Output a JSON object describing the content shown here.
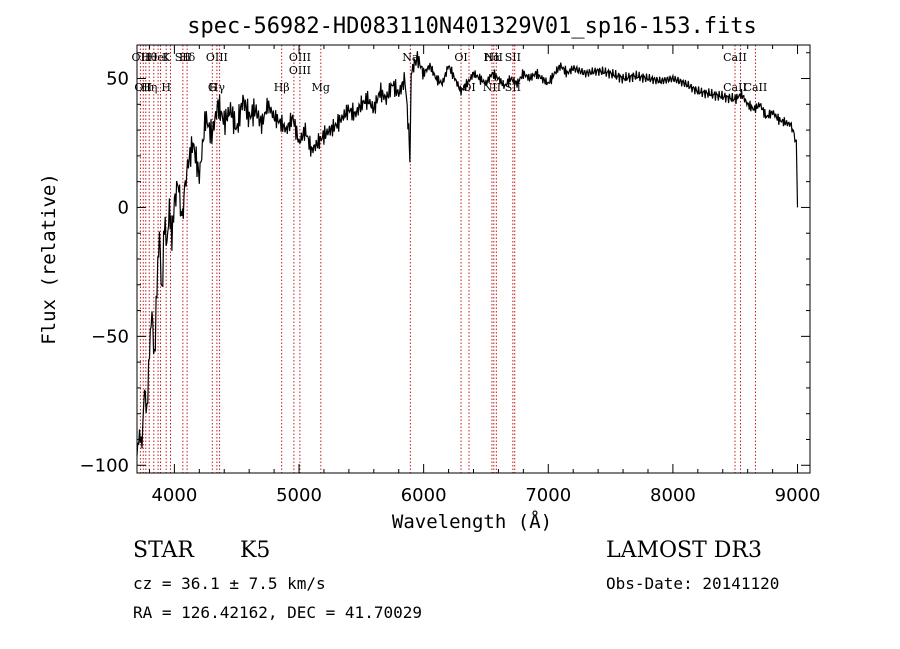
{
  "chart_data": {
    "type": "line",
    "title": "spec-56982-HD083110N401329V01_sp16-153.fits",
    "xlabel": "Wavelength (Å)",
    "ylabel": "Flux (relative)",
    "xlim": [
      3700,
      9100
    ],
    "ylim": [
      -103,
      63
    ],
    "xticks": [
      4000,
      5000,
      6000,
      7000,
      8000,
      9000
    ],
    "yticks": [
      -100,
      -50,
      0,
      50
    ],
    "grid": false,
    "series": [
      {
        "name": "flux",
        "x": [
          3700,
          3720,
          3740,
          3760,
          3780,
          3800,
          3820,
          3840,
          3860,
          3880,
          3900,
          3920,
          3940,
          3960,
          3980,
          4000,
          4030,
          4060,
          4100,
          4150,
          4200,
          4250,
          4300,
          4350,
          4400,
          4450,
          4500,
          4550,
          4600,
          4650,
          4700,
          4750,
          4800,
          4850,
          4900,
          4950,
          5000,
          5050,
          5100,
          5150,
          5200,
          5250,
          5300,
          5350,
          5400,
          5450,
          5500,
          5550,
          5600,
          5650,
          5700,
          5750,
          5800,
          5850,
          5880,
          5890,
          5900,
          5920,
          5950,
          6000,
          6050,
          6100,
          6150,
          6200,
          6250,
          6300,
          6350,
          6400,
          6450,
          6500,
          6550,
          6600,
          6650,
          6700,
          6750,
          6800,
          6850,
          6900,
          6950,
          7000,
          7050,
          7100,
          7150,
          7200,
          7300,
          7400,
          7500,
          7600,
          7700,
          7800,
          7900,
          8000,
          8100,
          8200,
          8300,
          8400,
          8500,
          8550,
          8600,
          8650,
          8700,
          8750,
          8800,
          8850,
          8900,
          8950,
          8990,
          9000
        ],
        "values": [
          -95,
          -88,
          -92,
          -70,
          -80,
          -55,
          -40,
          -60,
          -30,
          -10,
          -35,
          -5,
          -15,
          0,
          -12,
          2,
          10,
          -5,
          15,
          25,
          12,
          35,
          28,
          40,
          33,
          38,
          30,
          42,
          35,
          38,
          32,
          40,
          35,
          33,
          30,
          35,
          25,
          30,
          22,
          25,
          28,
          30,
          32,
          35,
          38,
          36,
          40,
          42,
          38,
          45,
          42,
          48,
          44,
          50,
          30,
          15,
          52,
          55,
          58,
          52,
          55,
          50,
          48,
          55,
          50,
          45,
          48,
          52,
          50,
          48,
          52,
          50,
          47,
          50,
          48,
          52,
          50,
          52,
          50,
          48,
          52,
          55,
          52,
          54,
          52,
          53,
          52,
          50,
          51,
          50,
          49,
          50,
          48,
          45,
          44,
          43,
          42,
          44,
          40,
          38,
          40,
          35,
          37,
          34,
          33,
          32,
          25,
          0
        ]
      }
    ],
    "lines": [
      {
        "x": 3727,
        "top": [
          "OII"
        ],
        "bottom": []
      },
      {
        "x": 3750,
        "top": [],
        "bottom": [
          "OII"
        ]
      },
      {
        "x": 3771,
        "top": [],
        "bottom": []
      },
      {
        "x": 3798,
        "top": [
          "Hθ"
        ],
        "bottom": [
          "Hη"
        ]
      },
      {
        "x": 3835,
        "top": [],
        "bottom": []
      },
      {
        "x": 3869,
        "top": [
          "HeI"
        ],
        "bottom": []
      },
      {
        "x": 3889,
        "top": [],
        "bottom": []
      },
      {
        "x": 3934,
        "top": [
          "K"
        ],
        "bottom": [
          "H"
        ]
      },
      {
        "x": 3969,
        "top": [],
        "bottom": []
      },
      {
        "x": 4068,
        "top": [
          "SII"
        ],
        "bottom": []
      },
      {
        "x": 4102,
        "top": [
          "Hδ"
        ],
        "bottom": []
      },
      {
        "x": 4304,
        "top": [],
        "bottom": [
          "G"
        ]
      },
      {
        "x": 4341,
        "top": [
          "OIII"
        ],
        "bottom": [
          "Hγ"
        ]
      },
      {
        "x": 4363,
        "top": [],
        "bottom": []
      },
      {
        "x": 4861,
        "top": [],
        "bottom": [
          "Hβ"
        ]
      },
      {
        "x": 4959,
        "top": [],
        "bottom": []
      },
      {
        "x": 5007,
        "top": [
          "OIII",
          "OIII"
        ],
        "bottom": []
      },
      {
        "x": 5175,
        "top": [],
        "bottom": [
          "Mg"
        ]
      },
      {
        "x": 5893,
        "top": [
          "Na"
        ],
        "bottom": []
      },
      {
        "x": 6300,
        "top": [
          "OI"
        ],
        "bottom": []
      },
      {
        "x": 6364,
        "top": [],
        "bottom": [
          "OI"
        ]
      },
      {
        "x": 6548,
        "top": [
          "Hα"
        ],
        "bottom": [
          "NII"
        ]
      },
      {
        "x": 6563,
        "top": [
          "NII"
        ],
        "bottom": []
      },
      {
        "x": 6583,
        "top": [],
        "bottom": []
      },
      {
        "x": 6716,
        "top": [
          "SII"
        ],
        "bottom": [
          "SII"
        ]
      },
      {
        "x": 6731,
        "top": [],
        "bottom": []
      },
      {
        "x": 8498,
        "top": [
          "CaII"
        ],
        "bottom": [
          "CaII"
        ]
      },
      {
        "x": 8542,
        "top": [],
        "bottom": []
      },
      {
        "x": 8662,
        "top": [],
        "bottom": [
          "CaII"
        ]
      }
    ]
  },
  "info": {
    "object_type": "STAR",
    "subclass": "K5",
    "survey": "LAMOST DR3",
    "cz": "cz = 36.1 ± 7.5 km/s",
    "obs_date": "Obs-Date: 20141120",
    "coords": "RA = 126.42162, DEC =  41.70029"
  },
  "colors": {
    "axis": "#000000",
    "spectrum": "#000000",
    "line_marker": "#c00000"
  }
}
